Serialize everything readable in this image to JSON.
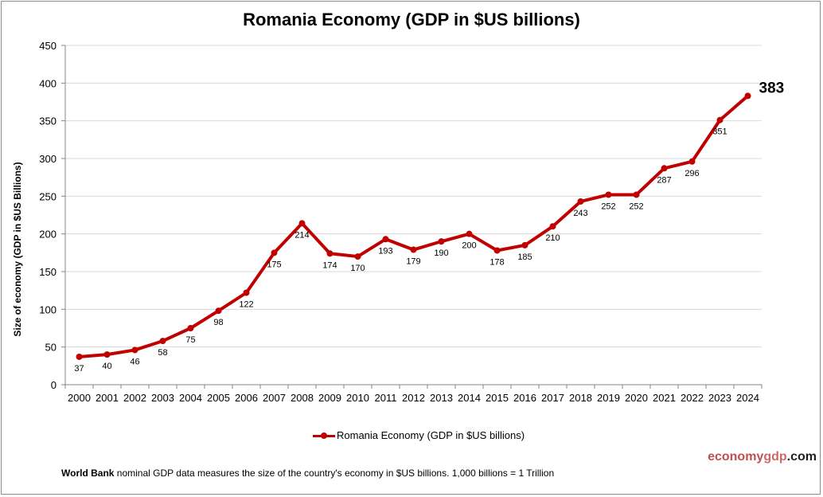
{
  "chart_data": {
    "type": "line",
    "title": "Romania Economy (GDP in $US billions)",
    "xlabel": "",
    "ylabel": "Size of economy (GDP in $US Billions)",
    "ylim": [
      0,
      450
    ],
    "yticks": [
      0,
      50,
      100,
      150,
      200,
      250,
      300,
      350,
      400,
      450
    ],
    "grid": true,
    "legend_position": "bottom",
    "categories": [
      "2000",
      "2001",
      "2002",
      "2003",
      "2004",
      "2005",
      "2006",
      "2007",
      "2008",
      "2009",
      "2010",
      "2011",
      "2012",
      "2013",
      "2014",
      "2015",
      "2016",
      "2017",
      "2018",
      "2019",
      "2020",
      "2021",
      "2022",
      "2023",
      "2024"
    ],
    "series": [
      {
        "name": "Romania Economy (GDP in $US billions)",
        "color": "#c00000",
        "values": [
          37,
          40,
          46,
          58,
          75,
          98,
          122,
          175,
          214,
          174,
          170,
          193,
          179,
          190,
          200,
          178,
          185,
          210,
          243,
          252,
          252,
          287,
          296,
          351,
          383
        ]
      }
    ],
    "last_label": "383"
  },
  "brand": {
    "part1": "economy",
    "part2": "gdp",
    "part3": ".com"
  },
  "note": {
    "bold": "World Bank",
    "text": " nominal GDP data  measures the size of the country's economy in $US billions. 1,000 billions = 1 Trillion"
  }
}
